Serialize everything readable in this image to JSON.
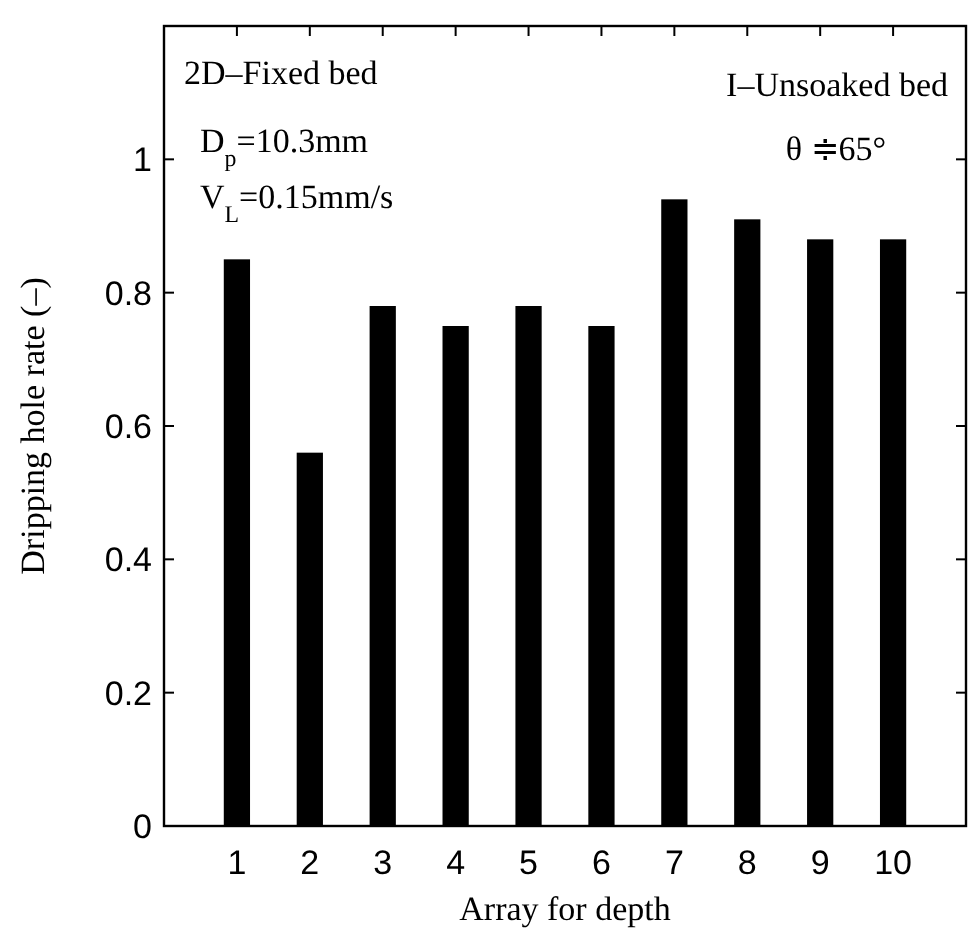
{
  "chart_data": {
    "type": "bar",
    "xlabel": "Array for depth",
    "ylabel": "Dripping hole rate  (–)",
    "categories": [
      "1",
      "2",
      "3",
      "4",
      "5",
      "6",
      "7",
      "8",
      "9",
      "10"
    ],
    "values": [
      0.85,
      0.56,
      0.78,
      0.75,
      0.78,
      0.75,
      0.94,
      0.91,
      0.88,
      0.88
    ],
    "color": "#000000",
    "ylim": [
      0,
      1.2
    ],
    "yticks": [
      0,
      {
        "value": 0.2,
        "label": "0.2"
      },
      {
        "value": 0.4,
        "label": "0.4"
      },
      {
        "value": 0.6,
        "label": "0.6"
      },
      {
        "value": 0.8,
        "label": "0.8"
      },
      1
    ],
    "annotations": [
      "2D–Fixed bed",
      "D$_{p}$=10.3mm",
      "V$_{L}$=0.15mm/s",
      "I–Unsoaked bed",
      "θ ≑65°"
    ],
    "grid": false
  }
}
